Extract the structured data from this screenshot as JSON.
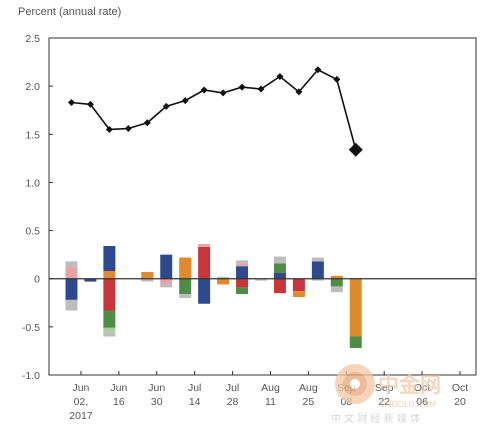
{
  "chart_data": {
    "type": "bar",
    "ylabel": "Percent (annual rate)",
    "ylim": [
      -1.0,
      2.5
    ],
    "yticks": [
      "2.5",
      "2.0",
      "1.5",
      "1.0",
      "0.5",
      "0",
      "-0.5",
      "-1.0"
    ],
    "ytick_values": [
      2.5,
      2.0,
      1.5,
      1.0,
      0.5,
      0,
      -0.5,
      -1.0
    ],
    "xlim": [
      0,
      21
    ],
    "xticks": [
      {
        "x": 1,
        "lines": [
          "Jun",
          "02,",
          "2017"
        ]
      },
      {
        "x": 3,
        "lines": [
          "Jun",
          "16"
        ]
      },
      {
        "x": 5,
        "lines": [
          "Jun",
          "30"
        ]
      },
      {
        "x": 7,
        "lines": [
          "Jul",
          "14"
        ]
      },
      {
        "x": 9,
        "lines": [
          "Jul",
          "28"
        ]
      },
      {
        "x": 11,
        "lines": [
          "Aug",
          "11"
        ]
      },
      {
        "x": 13,
        "lines": [
          "Aug",
          "25"
        ]
      },
      {
        "x": 15,
        "lines": [
          "Sep",
          "08"
        ]
      },
      {
        "x": 17,
        "lines": [
          "Sep",
          "22"
        ]
      },
      {
        "x": 19,
        "lines": [
          "Oct",
          "06"
        ]
      },
      {
        "x": 21,
        "lines": [
          "Oct",
          "20"
        ]
      }
    ],
    "line": {
      "color": "#111111",
      "x": [
        0.5,
        1.5,
        2.5,
        3.5,
        4.5,
        5.5,
        6.5,
        7.5,
        8.5,
        9.5,
        10.5,
        11.5,
        12.5,
        13.5,
        14.5,
        15.5
      ],
      "y": [
        1.83,
        1.81,
        1.55,
        1.56,
        1.62,
        1.79,
        1.85,
        1.96,
        1.93,
        1.99,
        1.97,
        2.1,
        1.94,
        2.17,
        2.07,
        1.34
      ],
      "last_marker": "large-diamond"
    },
    "colors": {
      "blue": "#2e4a8c",
      "red": "#c8363d",
      "green": "#4f8c46",
      "orange": "#e08a2e",
      "gray": "#bdbdbd",
      "pink": "#e8a2a2",
      "lightgreen": "#a9cfa0"
    },
    "bars": [
      {
        "x": 0.5,
        "segments": [
          {
            "c": "pink",
            "v": 0.12
          },
          {
            "c": "gray",
            "v": 0.06
          },
          {
            "c": "blue",
            "v": -0.22
          },
          {
            "c": "gray",
            "v": -0.11
          }
        ]
      },
      {
        "x": 1.5,
        "segments": [
          {
            "c": "blue",
            "v": -0.03
          }
        ]
      },
      {
        "x": 2.5,
        "segments": [
          {
            "c": "orange",
            "v": 0.08
          },
          {
            "c": "blue",
            "v": 0.26
          },
          {
            "c": "red",
            "v": -0.33
          },
          {
            "c": "green",
            "v": -0.18
          },
          {
            "c": "lightgreen",
            "v": -0.05
          },
          {
            "c": "gray",
            "v": -0.04
          }
        ]
      },
      {
        "x": 3.5,
        "segments": []
      },
      {
        "x": 4.5,
        "segments": [
          {
            "c": "orange",
            "v": 0.07
          },
          {
            "c": "gray",
            "v": -0.03
          }
        ]
      },
      {
        "x": 5.5,
        "segments": [
          {
            "c": "blue",
            "v": 0.25
          },
          {
            "c": "pink",
            "v": -0.05
          },
          {
            "c": "gray",
            "v": -0.04
          }
        ]
      },
      {
        "x": 6.5,
        "segments": [
          {
            "c": "orange",
            "v": 0.22
          },
          {
            "c": "green",
            "v": -0.16
          },
          {
            "c": "gray",
            "v": -0.04
          }
        ]
      },
      {
        "x": 7.5,
        "segments": [
          {
            "c": "red",
            "v": 0.33
          },
          {
            "c": "pink",
            "v": 0.03
          },
          {
            "c": "blue",
            "v": -0.26
          }
        ]
      },
      {
        "x": 8.5,
        "segments": [
          {
            "c": "gray",
            "v": 0.02
          },
          {
            "c": "orange",
            "v": -0.06
          }
        ]
      },
      {
        "x": 9.5,
        "segments": [
          {
            "c": "blue",
            "v": 0.13
          },
          {
            "c": "pink",
            "v": 0.03
          },
          {
            "c": "gray",
            "v": 0.03
          },
          {
            "c": "red",
            "v": -0.09
          },
          {
            "c": "green",
            "v": -0.07
          }
        ]
      },
      {
        "x": 10.5,
        "segments": [
          {
            "c": "gray",
            "v": -0.02
          }
        ]
      },
      {
        "x": 11.5,
        "segments": [
          {
            "c": "blue",
            "v": 0.06
          },
          {
            "c": "green",
            "v": 0.1
          },
          {
            "c": "gray",
            "v": 0.07
          },
          {
            "c": "red",
            "v": -0.15
          }
        ]
      },
      {
        "x": 12.5,
        "segments": [
          {
            "c": "red",
            "v": -0.13
          },
          {
            "c": "orange",
            "v": -0.06
          }
        ]
      },
      {
        "x": 13.5,
        "segments": [
          {
            "c": "blue",
            "v": 0.18
          },
          {
            "c": "gray",
            "v": 0.04
          },
          {
            "c": "gray",
            "v": -0.02
          }
        ]
      },
      {
        "x": 14.5,
        "segments": [
          {
            "c": "orange",
            "v": 0.03
          },
          {
            "c": "green",
            "v": -0.08
          },
          {
            "c": "gray",
            "v": -0.06
          }
        ]
      },
      {
        "x": 15.5,
        "segments": [
          {
            "c": "orange",
            "v": -0.6
          },
          {
            "c": "green",
            "v": -0.12
          }
        ]
      }
    ]
  },
  "watermark": {
    "brand": "中金网",
    "domain": "CNGOLD.COM",
    "subtitle": "中 文 财 经 新 媒 体"
  }
}
